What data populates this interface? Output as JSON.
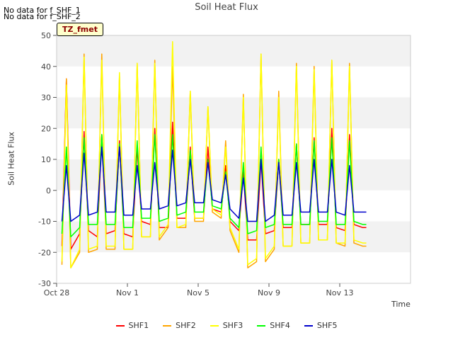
{
  "notices": [
    "No data for f_SHF_1",
    "No data for f_SHF_2"
  ],
  "badge": "TZ_fmet",
  "chart_data": {
    "type": "line",
    "title": "Soil Heat Flux",
    "xlabel": "Time",
    "ylabel": "Soil Heat Flux",
    "ylim": [
      -30,
      50
    ],
    "xlim": [
      0,
      20
    ],
    "yticks": [
      -30,
      -20,
      -10,
      0,
      10,
      20,
      30,
      40,
      50
    ],
    "xticks": [
      {
        "x": 0,
        "label": "Oct 28"
      },
      {
        "x": 4,
        "label": "Nov 1"
      },
      {
        "x": 8,
        "label": "Nov 5"
      },
      {
        "x": 12,
        "label": "Nov 9"
      },
      {
        "x": 16,
        "label": "Nov 13"
      }
    ],
    "grid": "horizontal bands",
    "legend": "bottom",
    "colors": {
      "SHF1": "#ff0000",
      "SHF2": "#ffa500",
      "SHF3": "#ffff00",
      "SHF4": "#00ff00",
      "SHF5": "#0000cc"
    },
    "x": [
      0.3,
      0.55,
      0.8,
      1.3,
      1.55,
      1.8,
      2.3,
      2.55,
      2.8,
      3.3,
      3.55,
      3.8,
      4.3,
      4.55,
      4.8,
      5.3,
      5.55,
      5.8,
      6.3,
      6.55,
      6.8,
      7.3,
      7.55,
      7.8,
      8.3,
      8.55,
      8.8,
      9.3,
      9.55,
      9.8,
      10.3,
      10.55,
      10.8,
      11.3,
      11.55,
      11.8,
      12.3,
      12.55,
      12.8,
      13.3,
      13.55,
      13.8,
      14.3,
      14.55,
      14.8,
      15.3,
      15.55,
      15.8,
      16.3,
      16.55,
      16.8,
      17.3,
      17.5
    ],
    "series": [
      {
        "name": "SHF1",
        "values": [
          -18,
          36,
          -19,
          -14,
          19,
          -13,
          -15,
          18,
          -14,
          -13,
          16,
          -14,
          -15,
          14,
          -10,
          -11,
          20,
          -12,
          -12,
          22,
          -9,
          -9,
          14,
          -9,
          -9,
          14,
          -6,
          -7,
          8,
          -10,
          -13,
          6,
          -16,
          -16,
          10,
          -14,
          -13,
          10,
          -12,
          -12,
          15,
          -11,
          -11,
          17,
          -11,
          -11,
          20,
          -12,
          -13,
          18,
          -11,
          -12,
          -12
        ]
      },
      {
        "name": "SHF2",
        "values": [
          -24,
          36,
          -25,
          -20,
          44,
          -20,
          -19,
          44,
          -19,
          -19,
          37,
          -19,
          -19,
          41,
          -15,
          -15,
          42,
          -16,
          -12,
          40,
          -12,
          -12,
          32,
          -10,
          -10,
          27,
          -7,
          -9,
          16,
          -13,
          -20,
          31,
          -25,
          -23,
          44,
          -23,
          -19,
          32,
          -18,
          -18,
          41,
          -17,
          -17,
          40,
          -16,
          -16,
          42,
          -17,
          -18,
          41,
          -17,
          -18,
          -18
        ]
      },
      {
        "name": "SHF3",
        "values": [
          -23,
          34,
          -25,
          -19,
          43,
          -19,
          -18,
          42,
          -18,
          -18,
          38,
          -19,
          -19,
          41,
          -15,
          -15,
          41,
          -15,
          -11,
          48,
          -12,
          -11,
          32,
          -9,
          -9,
          27,
          -6,
          -8,
          14,
          -12,
          -19,
          30,
          -24,
          -22,
          44,
          -22,
          -18,
          30,
          -18,
          -18,
          40,
          -17,
          -17,
          39,
          -16,
          -16,
          42,
          -17,
          -17,
          40,
          -16,
          -17,
          -17
        ]
      },
      {
        "name": "SHF4",
        "values": [
          -14,
          14,
          -15,
          -12,
          17,
          -11,
          -11,
          18,
          -11,
          -11,
          15,
          -12,
          -12,
          16,
          -9,
          -9,
          18,
          -10,
          -9,
          18,
          -8,
          -7,
          13,
          -7,
          -7,
          10,
          -5,
          -6,
          6,
          -9,
          -12,
          9,
          -14,
          -13,
          14,
          -12,
          -11,
          10,
          -11,
          -11,
          15,
          -11,
          -11,
          16,
          -10,
          -10,
          17,
          -11,
          -11,
          16,
          -10,
          -11,
          -11
        ]
      },
      {
        "name": "SHF5",
        "values": [
          -10,
          8,
          -10,
          -8,
          12,
          -8,
          -7,
          14,
          -7,
          -7,
          14,
          -8,
          -8,
          8,
          -6,
          -6,
          9,
          -6,
          -5,
          13,
          -5,
          -4,
          10,
          -4,
          -4,
          9,
          -3,
          -4,
          5,
          -6,
          -9,
          4,
          -10,
          -10,
          10,
          -10,
          -8,
          9,
          -8,
          -8,
          9,
          -7,
          -7,
          10,
          -7,
          -7,
          10,
          -7,
          -8,
          8,
          -7,
          -7,
          -7
        ]
      }
    ]
  }
}
